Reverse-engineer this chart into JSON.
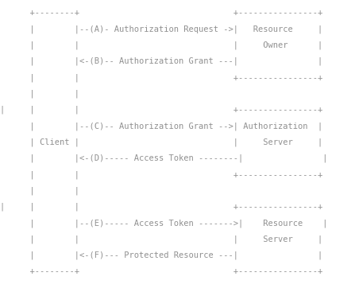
{
  "bg_color": "#ffffff",
  "text_color": "#909090",
  "font_family": "monospace",
  "font_size": 7.5,
  "lines": [
    "      +--------+                               +----------------+",
    "      |        |--(A)- Authorization Request ->|   Resource     |",
    "      |        |                               |     Owner      |",
    "      |        |<-(B)-- Authorization Grant ---|                |",
    "      |        |                               +----------------+",
    "      |        |",
    "|     |        |                               +----------------+",
    "      |        |--(C)-- Authorization Grant -->| Authorization  |",
    "      | Client |                               |     Server     |",
    "      |        |<-(D)----- Access Token --------|                |",
    "      |        |                               +----------------+",
    "      |        |",
    "|     |        |                               +----------------+",
    "      |        |--(E)----- Access Token ------->|    Resource    |",
    "      |        |                               |     Server     |",
    "      |        |<-(F)--- Protected Resource ---|                |",
    "      +--------+                               +----------------+"
  ]
}
